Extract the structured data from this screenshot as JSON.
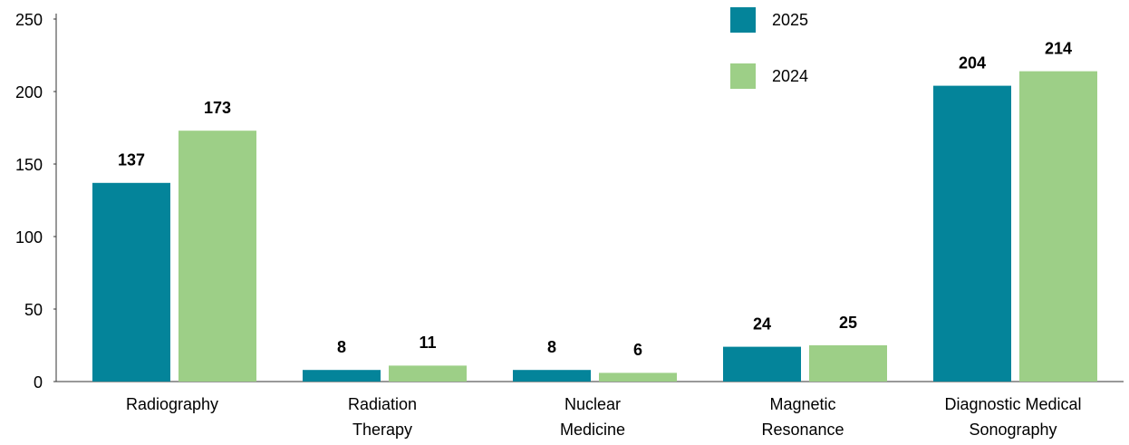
{
  "chart_data": {
    "type": "bar",
    "categories": [
      "Radiography",
      "Radiation\nTherapy",
      "Nuclear\nMedicine",
      "Magnetic\nResonance",
      "Diagnostic Medical\nSonography"
    ],
    "series": [
      {
        "name": "2025",
        "color": "#04849a",
        "values": [
          137,
          8,
          8,
          24,
          204
        ]
      },
      {
        "name": "2024",
        "color": "#9dcf87",
        "values": [
          173,
          11,
          6,
          25,
          214
        ]
      }
    ],
    "ylim": [
      0,
      250
    ],
    "yticks": [
      0,
      50,
      100,
      150,
      200,
      250
    ],
    "grid": false,
    "legend": "top"
  }
}
